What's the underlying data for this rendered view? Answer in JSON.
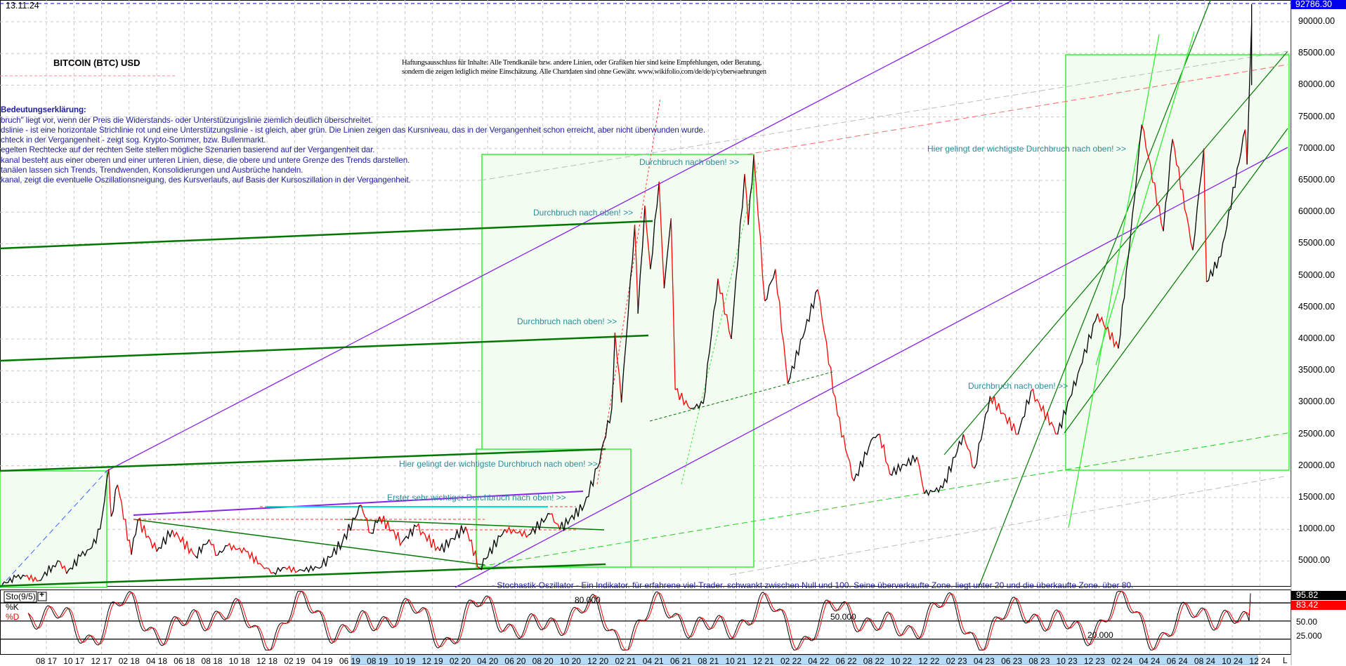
{
  "header": {
    "date": "13.11.24",
    "title": "BITCOIN (BTC) USD",
    "current_price_label": "92786.30",
    "disclaimer": [
      "Haftungsausschluss für Inhalte: Alle Trendkanäle bzw. andere Linien, oder Grafiken hier sind keine Empfehlungen, oder Beratung,",
      "sondern die zeigen lediglich meine  Einschätzung. Alle Chartdaten sind ohne Gewähr.  www.wikifolio.com/de/de/p/cyberwaehrungen"
    ]
  },
  "legend": {
    "heading": "Bedeutungserklärung:",
    "lines": [
      "bruch\" liegt vor, wenn der Preis die Widerstands- oder Unterstützungslinie ziemlich deutlich überschreitet.",
      "dslinie - ist eine horizontale Strichlinie rot und eine Unterstützungslinie - ist gleich, aber grün. Die Linien zeigen das Kursniveau, das in der Vergangenheit schon erreicht, aber nicht überwunden wurde.",
      "chteck in der Vergangenheit - zeigt sog. Krypto-Sommer, bzw. Bullenmarkt.",
      "egelten Rechtecke auf der rechten Seite stellen mögliche Szenarien basierend auf der Vergangenheit dar.",
      "kanal besteht aus einer oberen und einer unteren Linien, diese, die obere und untere Grenze des Trends darstellen.",
      "tanälen lassen sich Trends, Trendwenden, Konsolidierungen und Ausbrüche handeln.",
      "kanal, zeigt die eventuelle Oszillationsneigung, des Kursverlaufs, auf Basis der Kursoszillation in der Vergangenheit."
    ]
  },
  "annotations": [
    "Durchbruch nach oben! >>",
    "Durchbruch nach oben! >>",
    "Durchbruch nach oben! >>",
    "Hier gelingt der wichtigste Durchbruch nach oben! >>",
    "Erster sehr wichtiger Durchbruch nach oben! >>",
    "Hier gelingt der wichtigste Durchbruch nach oben! >>",
    "Durchbruch nach oben! >>",
    "- Stochastik-Oszillator - Ein Indikator. für erfahrene viel-Trader. schwankt zwischen Null und 100. Seine überverkaufte Zone. liegt unter 20 und die überkaufte Zone. über 80."
  ],
  "colors": {
    "price_up": "#000000",
    "price_down": "#ff0000",
    "annotation": "#2b8c9c",
    "legend_text": "#1f1f9c",
    "zone_fill": "#f2fcf0",
    "zone_border": "#33ee33",
    "trend_purple": "#8822ee",
    "trend_green": "#007700",
    "current_price_bg": "#0000ee"
  },
  "chart_data": {
    "type": "line",
    "title": "BITCOIN (BTC) USD",
    "xlabel": "",
    "ylabel": "",
    "ylim": [
      0,
      93000
    ],
    "grid": true,
    "y_ticks": [
      "90000.00",
      "85000.00",
      "80000.00",
      "75000.00",
      "70000.00",
      "65000.00",
      "60000.00",
      "55000.00",
      "50000.00",
      "45000.00",
      "40000.00",
      "35000.00",
      "30000.00",
      "25000.00",
      "20000.00",
      "15000.00",
      "10000.00",
      "5000.00"
    ],
    "x_ticks": [
      "08 17",
      "10 17",
      "12 17",
      "02 18",
      "04 18",
      "06 18",
      "08 18",
      "10 18",
      "12 18",
      "02 19",
      "04 19",
      "06 19",
      "08 19",
      "10 19",
      "12 19",
      "02 20",
      "04 20",
      "06 20",
      "08 20",
      "10 20",
      "12 20",
      "02 21",
      "04 21",
      "06 21",
      "08 21",
      "10 21",
      "12 21",
      "02 22",
      "04 22",
      "06 22",
      "08 22",
      "10 22",
      "12 22",
      "02 23",
      "04 23",
      "06 23",
      "08 23",
      "10 23",
      "12 23",
      "02 24",
      "04 24",
      "06 24",
      "08 24",
      "10 24",
      "12 24"
    ],
    "x_end_label": "L",
    "series": [
      {
        "points": [
          [
            "2017-04-25",
            1300
          ],
          [
            "2017-05-25",
            2400
          ],
          [
            "2017-06-15",
            2600
          ],
          [
            "2017-07-15",
            1900
          ],
          [
            "2017-08-15",
            4300
          ],
          [
            "2017-09-01",
            4900
          ],
          [
            "2017-09-15",
            3000
          ],
          [
            "2017-10-15",
            5700
          ],
          [
            "2017-11-10",
            7100
          ],
          [
            "2017-11-28",
            10000
          ],
          [
            "2017-12-17",
            19500
          ],
          [
            "2017-12-22",
            12000
          ],
          [
            "2018-01-06",
            17000
          ],
          [
            "2018-02-06",
            6000
          ],
          [
            "2018-02-20",
            11500
          ],
          [
            "2018-04-01",
            6500
          ],
          [
            "2018-05-05",
            9900
          ],
          [
            "2018-06-25",
            5800
          ],
          [
            "2018-07-25",
            8400
          ],
          [
            "2018-08-14",
            5900
          ],
          [
            "2018-09-05",
            7400
          ],
          [
            "2018-10-15",
            6500
          ],
          [
            "2018-11-20",
            4300
          ],
          [
            "2018-12-15",
            3200
          ],
          [
            "2019-01-10",
            4000
          ],
          [
            "2019-02-08",
            3400
          ],
          [
            "2019-03-30",
            4100
          ],
          [
            "2019-05-15",
            8000
          ],
          [
            "2019-06-26",
            13800
          ],
          [
            "2019-07-17",
            9400
          ],
          [
            "2019-08-06",
            12000
          ],
          [
            "2019-09-25",
            8000
          ],
          [
            "2019-10-26",
            10400
          ],
          [
            "2019-12-17",
            6600
          ],
          [
            "2020-02-13",
            10400
          ],
          [
            "2020-03-13",
            3900
          ],
          [
            "2020-05-08",
            10000
          ],
          [
            "2020-06-30",
            9100
          ],
          [
            "2020-08-17",
            12400
          ],
          [
            "2020-09-08",
            10000
          ],
          [
            "2020-10-31",
            13800
          ],
          [
            "2020-11-30",
            19700
          ],
          [
            "2020-12-31",
            29000
          ],
          [
            "2021-01-08",
            41000
          ],
          [
            "2021-01-22",
            30000
          ],
          [
            "2021-02-21",
            58000
          ],
          [
            "2021-02-28",
            44000
          ],
          [
            "2021-03-13",
            61000
          ],
          [
            "2021-03-25",
            51000
          ],
          [
            "2021-04-14",
            64800
          ],
          [
            "2021-04-25",
            48000
          ],
          [
            "2021-05-10",
            59000
          ],
          [
            "2021-05-19",
            32000
          ],
          [
            "2021-06-22",
            29000
          ],
          [
            "2021-07-20",
            29800
          ],
          [
            "2021-08-22",
            49500
          ],
          [
            "2021-09-21",
            40000
          ],
          [
            "2021-10-20",
            66000
          ],
          [
            "2021-10-28",
            58000
          ],
          [
            "2021-11-10",
            69000
          ],
          [
            "2021-12-04",
            46000
          ],
          [
            "2021-12-27",
            51000
          ],
          [
            "2022-01-24",
            33000
          ],
          [
            "2022-03-29",
            47800
          ],
          [
            "2022-05-12",
            28000
          ],
          [
            "2022-06-18",
            17600
          ],
          [
            "2022-07-30",
            24500
          ],
          [
            "2022-08-14",
            25000
          ],
          [
            "2022-09-06",
            18700
          ],
          [
            "2022-11-05",
            21400
          ],
          [
            "2022-11-21",
            15600
          ],
          [
            "2022-12-31",
            16500
          ],
          [
            "2023-02-16",
            25000
          ],
          [
            "2023-03-10",
            19600
          ],
          [
            "2023-04-14",
            31000
          ],
          [
            "2023-06-15",
            25000
          ],
          [
            "2023-07-13",
            31800
          ],
          [
            "2023-09-11",
            25000
          ],
          [
            "2023-10-25",
            34500
          ],
          [
            "2023-12-08",
            44000
          ],
          [
            "2024-01-23",
            38500
          ],
          [
            "2024-02-28",
            62000
          ],
          [
            "2024-03-14",
            73800
          ],
          [
            "2024-05-01",
            57000
          ],
          [
            "2024-05-21",
            71500
          ],
          [
            "2024-07-05",
            54000
          ],
          [
            "2024-07-29",
            70000
          ],
          [
            "2024-08-05",
            49000
          ],
          [
            "2024-09-06",
            53000
          ],
          [
            "2024-10-29",
            73000
          ],
          [
            "2024-11-03",
            67500
          ],
          [
            "2024-11-13",
            89800
          ]
        ]
      }
    ],
    "current_price": 92786.3
  },
  "stochastic": {
    "label": "Sto(9/5)",
    "add_label": "+",
    "k_label": "%K",
    "d_label": "%D",
    "k_value": "95.82",
    "d_value": "83.42",
    "k_current": 95.82,
    "d_current": 83.42,
    "levels": [
      80,
      50,
      20
    ],
    "axis_labels": [
      "50.00",
      "25.000"
    ],
    "level_labels": [
      "80.000",
      "50.000",
      "20.000"
    ],
    "ylim": [
      0,
      100
    ]
  }
}
